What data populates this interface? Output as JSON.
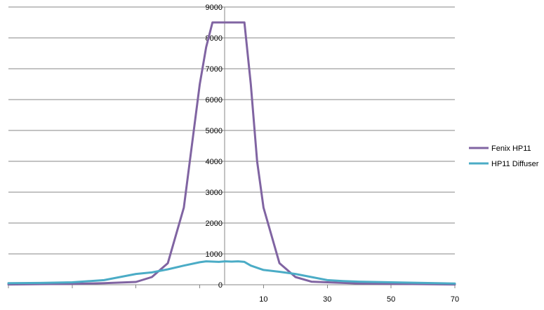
{
  "chart_data": {
    "type": "line",
    "x": [
      -70,
      -60,
      -50,
      -40,
      -35,
      -30,
      -25,
      -20,
      -15,
      -10,
      -8,
      -6,
      -4,
      -2,
      0,
      2,
      4,
      6,
      8,
      10,
      15,
      20,
      25,
      30,
      35,
      40,
      50,
      60,
      70
    ],
    "x_tick_labels": [
      "10",
      "30",
      "50",
      "70"
    ],
    "x_tick_values": [
      10,
      30,
      50,
      70
    ],
    "xlim": [
      -70,
      70
    ],
    "ylim": [
      0,
      9000
    ],
    "y_ticks": [
      0,
      1000,
      2000,
      3000,
      4000,
      5000,
      6000,
      7000,
      8000,
      9000
    ],
    "y_tick_labels": [
      "0",
      "1000",
      "2000",
      "3000",
      "4000",
      "5000",
      "6000",
      "7000",
      "8000",
      "9000"
    ],
    "grid": true,
    "legend_position": "right",
    "series": [
      {
        "name": "Fenix HP11",
        "color": "#8064a2",
        "values": [
          10,
          20,
          30,
          50,
          70,
          90,
          250,
          700,
          2500,
          6500,
          7700,
          8500,
          8500,
          8500,
          8500,
          8500,
          8500,
          6500,
          4000,
          2500,
          700,
          250,
          100,
          80,
          60,
          40,
          30,
          20,
          10
        ]
      },
      {
        "name": "HP11 Diffuser",
        "color": "#4bacc6",
        "values": [
          50,
          60,
          80,
          150,
          250,
          350,
          400,
          500,
          620,
          730,
          760,
          750,
          740,
          760,
          750,
          760,
          740,
          620,
          550,
          480,
          420,
          350,
          250,
          150,
          120,
          100,
          80,
          60,
          40
        ]
      }
    ]
  }
}
